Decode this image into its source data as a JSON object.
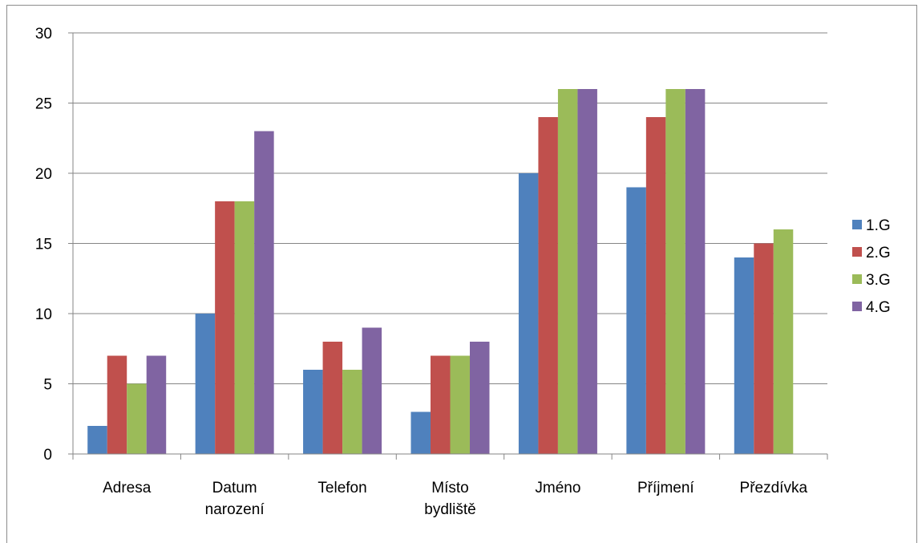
{
  "chart_data": {
    "type": "bar",
    "title": "",
    "xlabel": "",
    "ylabel": "",
    "categories": [
      [
        "Adresa"
      ],
      [
        "Datum",
        "narození"
      ],
      [
        "Telefon"
      ],
      [
        "Místo",
        "bydliště"
      ],
      [
        "Jméno"
      ],
      [
        "Příjmení"
      ],
      [
        "Přezdívka"
      ]
    ],
    "series": [
      {
        "name": "1.G",
        "color": "#4f81bd",
        "values": [
          2,
          10,
          6,
          3,
          20,
          19,
          14
        ]
      },
      {
        "name": "2.G",
        "color": "#c0504d",
        "values": [
          7,
          18,
          8,
          7,
          24,
          24,
          15
        ]
      },
      {
        "name": "3.G",
        "color": "#9bbb59",
        "values": [
          5,
          18,
          6,
          7,
          26,
          26,
          16
        ]
      },
      {
        "name": "4.G",
        "color": "#8064a2",
        "values": [
          7,
          23,
          9,
          8,
          26,
          26,
          0
        ]
      }
    ],
    "ylim": [
      0,
      30
    ],
    "yticks": [
      0,
      5,
      10,
      15,
      20,
      25,
      30
    ],
    "grid": true,
    "legend": "right"
  }
}
